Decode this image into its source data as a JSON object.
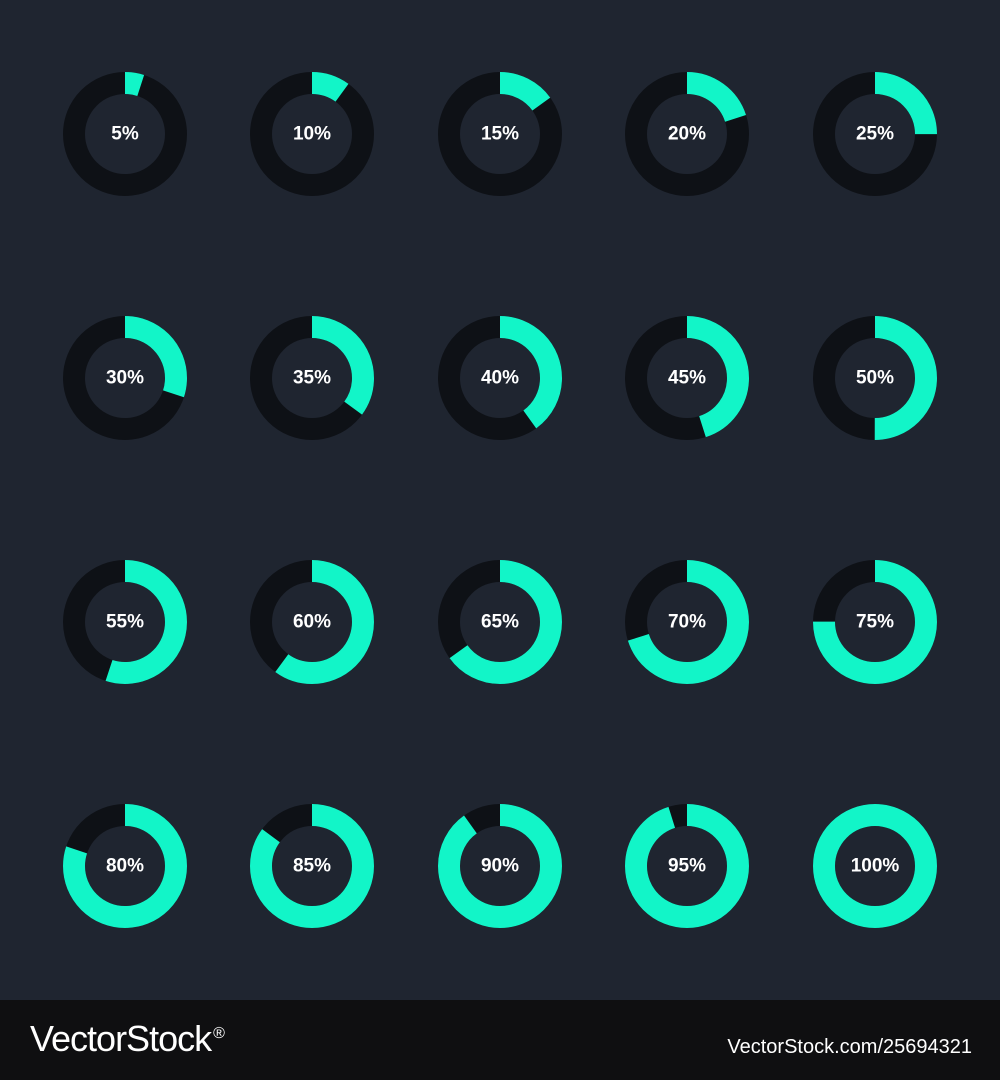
{
  "colors": {
    "background": "#1f2530",
    "track": "#0e1116",
    "progress": "#12f5c8",
    "label": "#ffffff",
    "footer_bg": "#0f0f11"
  },
  "chart_data": {
    "type": "progress-rings",
    "unit": "%",
    "rows": 4,
    "columns": 5,
    "values": [
      5,
      10,
      15,
      20,
      25,
      30,
      35,
      40,
      45,
      50,
      55,
      60,
      65,
      70,
      75,
      80,
      85,
      90,
      95,
      100
    ],
    "labels": [
      "5%",
      "10%",
      "15%",
      "20%",
      "25%",
      "30%",
      "35%",
      "40%",
      "45%",
      "50%",
      "55%",
      "60%",
      "65%",
      "70%",
      "75%",
      "80%",
      "85%",
      "90%",
      "95%",
      "100%"
    ]
  },
  "footer": {
    "brand": "VectorStock",
    "reg_mark": "®",
    "credit": "VectorStock.com/25694321"
  }
}
